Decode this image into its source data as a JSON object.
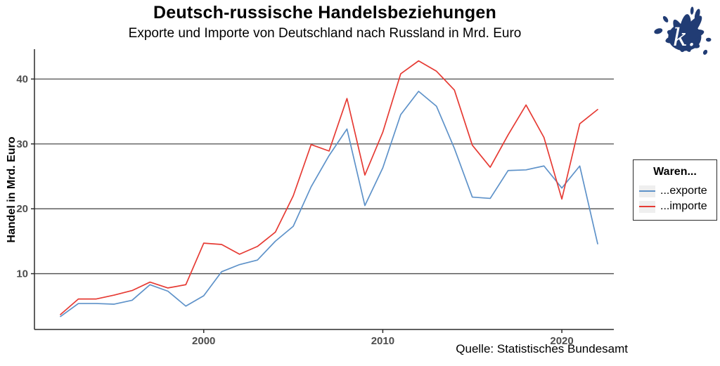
{
  "chart_data": {
    "type": "line",
    "title": "Deutsch-russische Handelsbeziehungen",
    "subtitle": "Exporte und Importe von Deutschland nach Russland in Mrd. Euro",
    "ylabel": "Handel in Mrd. Euro",
    "caption": "Quelle: Statistisches Bundesamt",
    "x": [
      1992,
      1993,
      1994,
      1995,
      1996,
      1997,
      1998,
      1999,
      2000,
      2001,
      2002,
      2003,
      2004,
      2005,
      2006,
      2007,
      2008,
      2009,
      2010,
      2011,
      2012,
      2013,
      2014,
      2015,
      2016,
      2017,
      2018,
      2019,
      2020,
      2021,
      2022
    ],
    "series": [
      {
        "key": "exporte",
        "name": "...exporte",
        "color": "#5e92c9",
        "values": [
          3.4,
          5.4,
          5.4,
          5.3,
          5.9,
          8.3,
          7.3,
          5.0,
          6.6,
          10.3,
          11.4,
          12.1,
          15.0,
          17.3,
          23.4,
          28.2,
          32.3,
          20.5,
          26.3,
          34.5,
          38.1,
          35.8,
          29.3,
          21.8,
          21.6,
          25.9,
          26.0,
          26.6,
          23.2,
          26.6,
          14.6
        ]
      },
      {
        "key": "importe",
        "name": "...importe",
        "color": "#e63b34",
        "values": [
          3.7,
          6.1,
          6.1,
          6.7,
          7.4,
          8.7,
          7.8,
          8.3,
          14.7,
          14.5,
          13.0,
          14.2,
          16.4,
          22.0,
          29.9,
          28.9,
          37.0,
          25.2,
          31.8,
          40.8,
          42.8,
          41.2,
          38.3,
          29.8,
          26.4,
          31.4,
          36.0,
          31.0,
          21.5,
          33.1,
          35.3
        ]
      }
    ],
    "ylim": [
      1.4,
      44.6
    ],
    "yticks": [
      10,
      20,
      30,
      40
    ],
    "xticks": [
      2000,
      2010,
      2020
    ],
    "grid": "horizontal",
    "legend_position": "right"
  },
  "legend": {
    "title": "Waren...",
    "entries": [
      {
        "label": "...exporte",
        "color": "#5e92c9"
      },
      {
        "label": "...importe",
        "color": "#e63b34"
      }
    ]
  },
  "logo": {
    "letter": "k.",
    "color": "#213c74"
  },
  "colors": {
    "grid": "#4d4d4d",
    "axis": "#2b2b2b",
    "tick_label": "#4d4d4d",
    "background": "#ffffff"
  }
}
